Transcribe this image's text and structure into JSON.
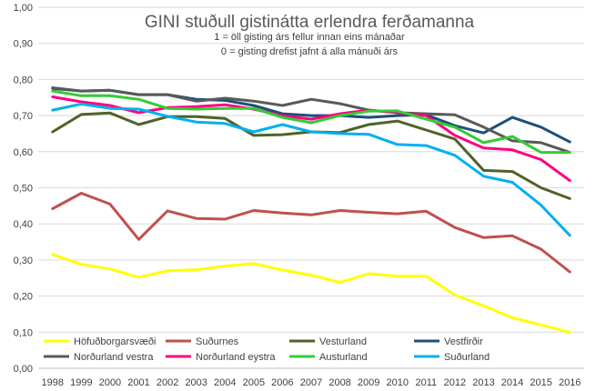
{
  "chart_data": {
    "type": "line",
    "title": "GINI stuðull gistinátta erlendra ferðamanna",
    "subtitle_lines": [
      "1 = öll gisting árs fellur innan eins mánaðar",
      "0 = gisting  drefist jafnt á alla mánuði árs"
    ],
    "xlabel": "",
    "ylabel": "",
    "ylim": [
      0,
      1
    ],
    "y_ticks": [
      "0,00",
      "0,10",
      "0,20",
      "0,30",
      "0,40",
      "0,50",
      "0,60",
      "0,70",
      "0,80",
      "0,90",
      "1,00"
    ],
    "categories": [
      "1998",
      "1999",
      "2000",
      "2001",
      "2002",
      "2003",
      "2004",
      "2005",
      "2006",
      "2007",
      "2008",
      "2009",
      "2010",
      "2011",
      "2012",
      "2013",
      "2014",
      "2015",
      "2016"
    ],
    "grid": true,
    "legend_position": "bottom",
    "series": [
      {
        "name": "Höfuðborgarsvæði",
        "color": "#ffff00",
        "values": [
          0.315,
          0.288,
          0.275,
          0.252,
          0.27,
          0.273,
          0.283,
          0.29,
          0.272,
          0.258,
          0.238,
          0.262,
          0.255,
          0.255,
          0.203,
          0.173,
          0.14,
          0.12,
          0.1
        ]
      },
      {
        "name": "Suðurnes",
        "color": "#c0504d",
        "values": [
          0.442,
          0.485,
          0.455,
          0.357,
          0.436,
          0.415,
          0.413,
          0.437,
          0.43,
          0.425,
          0.437,
          0.432,
          0.428,
          0.435,
          0.39,
          0.362,
          0.367,
          0.33,
          0.267
        ]
      },
      {
        "name": "Vesturland",
        "color": "#4f6228",
        "values": [
          0.655,
          0.703,
          0.707,
          0.675,
          0.697,
          0.697,
          0.692,
          0.645,
          0.647,
          0.655,
          0.653,
          0.675,
          0.685,
          0.66,
          0.635,
          0.548,
          0.545,
          0.5,
          0.47
        ]
      },
      {
        "name": "Vestfirðir",
        "color": "#1f4e79",
        "values": [
          0.775,
          0.768,
          0.77,
          0.758,
          0.758,
          0.745,
          0.742,
          0.728,
          0.705,
          0.7,
          0.7,
          0.695,
          0.7,
          0.702,
          0.672,
          0.652,
          0.695,
          0.668,
          0.627
        ]
      },
      {
        "name": "Norðurland vestra",
        "color": "#595959",
        "values": [
          0.777,
          0.768,
          0.77,
          0.758,
          0.758,
          0.74,
          0.748,
          0.74,
          0.728,
          0.745,
          0.733,
          0.715,
          0.708,
          0.705,
          0.702,
          0.668,
          0.63,
          0.625,
          0.598
        ]
      },
      {
        "name": "Norðurland eystra",
        "color": "#ff0080",
        "values": [
          0.752,
          0.738,
          0.728,
          0.708,
          0.722,
          0.725,
          0.73,
          0.718,
          0.7,
          0.69,
          0.705,
          0.715,
          0.708,
          0.7,
          0.645,
          0.61,
          0.605,
          0.578,
          0.52
        ]
      },
      {
        "name": "Austurland",
        "color": "#33cc33",
        "values": [
          0.768,
          0.755,
          0.755,
          0.745,
          0.72,
          0.718,
          0.72,
          0.72,
          0.695,
          0.68,
          0.7,
          0.712,
          0.713,
          0.69,
          0.668,
          0.625,
          0.642,
          0.598,
          0.598
        ]
      },
      {
        "name": "Suðurland",
        "color": "#00b0f0",
        "values": [
          0.715,
          0.732,
          0.72,
          0.718,
          0.698,
          0.682,
          0.678,
          0.655,
          0.675,
          0.655,
          0.65,
          0.648,
          0.62,
          0.617,
          0.59,
          0.532,
          0.515,
          0.452,
          0.368
        ]
      }
    ]
  }
}
